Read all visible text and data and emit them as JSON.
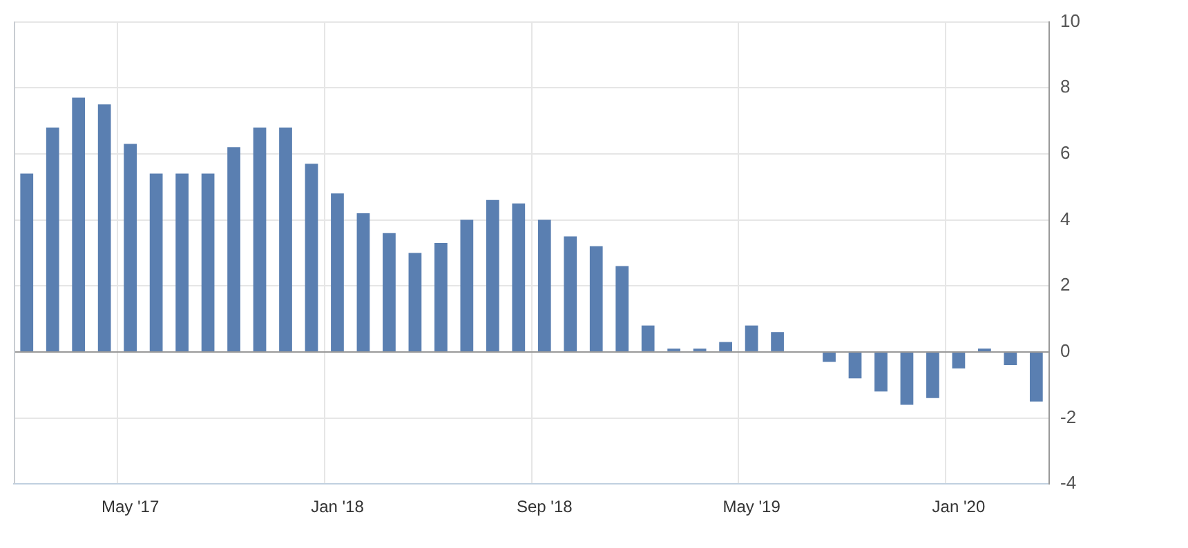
{
  "chart_data": {
    "type": "bar",
    "categories": [
      null,
      null,
      null,
      null,
      "May '17",
      null,
      null,
      null,
      null,
      null,
      null,
      null,
      "Jan '18",
      null,
      null,
      null,
      null,
      null,
      null,
      null,
      "Sep '18",
      null,
      null,
      null,
      null,
      null,
      null,
      null,
      "May '19",
      null,
      null,
      null,
      null,
      null,
      null,
      null,
      "Jan '20",
      null,
      null,
      null
    ],
    "values": [
      5.4,
      6.8,
      7.7,
      7.5,
      6.3,
      5.4,
      5.4,
      5.4,
      6.2,
      6.8,
      6.8,
      5.7,
      4.8,
      4.2,
      3.6,
      3.0,
      3.3,
      4.0,
      4.6,
      4.5,
      4.0,
      3.5,
      3.2,
      2.6,
      0.8,
      0.1,
      0.1,
      0.3,
      0.8,
      0.6,
      0,
      -0.3,
      -0.8,
      -1.2,
      -1.6,
      -1.4,
      -0.5,
      0.1,
      -0.4,
      -1.5
    ],
    "color": "#5a7fb1",
    "ylim": [
      -4,
      10
    ],
    "yticks": [
      -4,
      -2,
      0,
      2,
      4,
      6,
      8,
      10
    ],
    "grid": true,
    "legend": false
  }
}
